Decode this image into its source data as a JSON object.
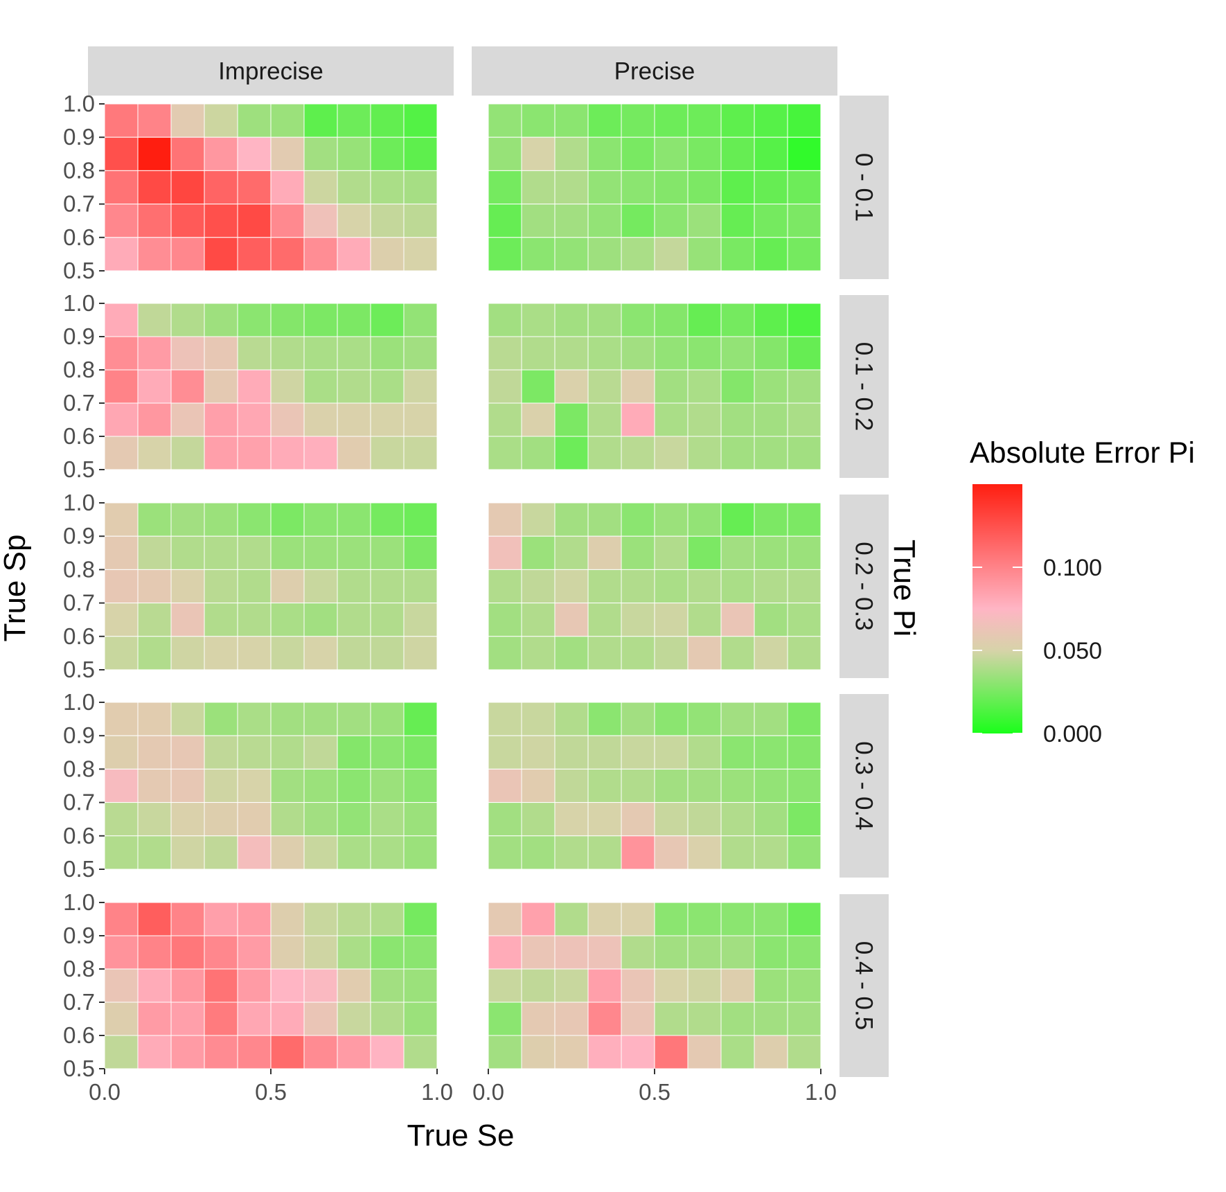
{
  "chart_data": {
    "type": "heatmap",
    "title": "",
    "xlabel": "True Se",
    "ylabel": "True Sp",
    "row_facet_label": "True Pi",
    "column_facets": [
      "Imprecise",
      "Precise"
    ],
    "row_facets": [
      "0 - 0.1",
      "0.1 - 0.2",
      "0.2 - 0.3",
      "0.3 - 0.4",
      "0.4 - 0.5"
    ],
    "xlim": [
      0,
      1
    ],
    "ylim": [
      0.5,
      1.0
    ],
    "x_ticks": [
      "0.0",
      "0.5",
      "1.0"
    ],
    "y_ticks": [
      "0.5",
      "0.6",
      "0.7",
      "0.8",
      "0.9",
      "1.0"
    ],
    "x_tick_values": [
      0,
      0.5,
      1.0
    ],
    "y_tick_values": [
      0.5,
      0.6,
      0.7,
      0.8,
      0.9,
      1.0
    ],
    "x_bins": [
      0.0,
      0.1,
      0.2,
      0.3,
      0.4,
      0.5,
      0.6,
      0.7,
      0.8,
      0.9,
      1.0
    ],
    "y_bins": [
      0.5,
      0.6,
      0.7,
      0.8,
      0.9,
      1.0
    ],
    "grid": false,
    "legend": {
      "title": "Absolute Error Pi",
      "position": "right",
      "breaks": [
        0.0,
        0.05,
        0.1
      ],
      "labels": [
        "0.000",
        "0.050",
        "0.100"
      ],
      "limits": [
        0,
        0.15
      ],
      "gradient": [
        {
          "value": 0.0,
          "color": "#1aff1a"
        },
        {
          "value": 0.05,
          "color": "#d7d3a9"
        },
        {
          "value": 0.075,
          "color": "#ffb5c4"
        },
        {
          "value": 0.15,
          "color": "#ff1e10"
        }
      ]
    },
    "value_note": "Rows listed top (Sp 0.9-1.0) to bottom (Sp 0.5-0.6); columns Se 0.0-0.1 to 0.9-1.0.",
    "panels": [
      {
        "column": "Imprecise",
        "row": "0 - 0.1",
        "values": [
          [
            0.105,
            0.1,
            0.057,
            0.047,
            0.035,
            0.034,
            0.018,
            0.022,
            0.019,
            0.015
          ],
          [
            0.125,
            0.15,
            0.108,
            0.09,
            0.075,
            0.057,
            0.036,
            0.033,
            0.022,
            0.018
          ],
          [
            0.108,
            0.128,
            0.13,
            0.115,
            0.112,
            0.08,
            0.047,
            0.04,
            0.038,
            0.037
          ],
          [
            0.098,
            0.11,
            0.12,
            0.125,
            0.128,
            0.097,
            0.065,
            0.05,
            0.045,
            0.043
          ],
          [
            0.08,
            0.095,
            0.098,
            0.128,
            0.118,
            0.112,
            0.095,
            0.08,
            0.053,
            0.05
          ]
        ]
      },
      {
        "column": "Precise",
        "row": "0 - 0.1",
        "values": [
          [
            0.032,
            0.03,
            0.03,
            0.022,
            0.024,
            0.022,
            0.022,
            0.018,
            0.016,
            0.012
          ],
          [
            0.033,
            0.05,
            0.04,
            0.03,
            0.025,
            0.03,
            0.025,
            0.02,
            0.016,
            0.006
          ],
          [
            0.024,
            0.04,
            0.04,
            0.032,
            0.03,
            0.028,
            0.026,
            0.018,
            0.02,
            0.022
          ],
          [
            0.02,
            0.036,
            0.036,
            0.032,
            0.024,
            0.03,
            0.034,
            0.02,
            0.024,
            0.026
          ],
          [
            0.022,
            0.03,
            0.032,
            0.035,
            0.038,
            0.045,
            0.033,
            0.025,
            0.02,
            0.024
          ]
        ]
      },
      {
        "column": "Imprecise",
        "row": "0.1 - 0.2",
        "values": [
          [
            0.08,
            0.044,
            0.04,
            0.035,
            0.03,
            0.028,
            0.026,
            0.026,
            0.022,
            0.032
          ],
          [
            0.095,
            0.088,
            0.064,
            0.06,
            0.042,
            0.04,
            0.038,
            0.038,
            0.034,
            0.036
          ],
          [
            0.1,
            0.08,
            0.095,
            0.058,
            0.08,
            0.048,
            0.038,
            0.04,
            0.038,
            0.048
          ],
          [
            0.082,
            0.09,
            0.062,
            0.086,
            0.082,
            0.062,
            0.052,
            0.052,
            0.05,
            0.05
          ],
          [
            0.058,
            0.05,
            0.045,
            0.086,
            0.085,
            0.08,
            0.078,
            0.056,
            0.046,
            0.046
          ]
        ]
      },
      {
        "column": "Precise",
        "row": "0.1 - 0.2",
        "values": [
          [
            0.036,
            0.038,
            0.036,
            0.036,
            0.03,
            0.028,
            0.02,
            0.024,
            0.018,
            0.014
          ],
          [
            0.042,
            0.04,
            0.04,
            0.038,
            0.036,
            0.032,
            0.03,
            0.032,
            0.028,
            0.02
          ],
          [
            0.044,
            0.026,
            0.052,
            0.042,
            0.055,
            0.036,
            0.038,
            0.028,
            0.034,
            0.036
          ],
          [
            0.04,
            0.052,
            0.026,
            0.04,
            0.08,
            0.038,
            0.04,
            0.036,
            0.036,
            0.038
          ],
          [
            0.038,
            0.036,
            0.022,
            0.04,
            0.042,
            0.046,
            0.04,
            0.036,
            0.036,
            0.036
          ]
        ]
      },
      {
        "column": "Imprecise",
        "row": "0.2 - 0.3",
        "values": [
          [
            0.056,
            0.034,
            0.036,
            0.034,
            0.03,
            0.026,
            0.03,
            0.03,
            0.024,
            0.022
          ],
          [
            0.058,
            0.044,
            0.04,
            0.04,
            0.04,
            0.034,
            0.034,
            0.034,
            0.034,
            0.026
          ],
          [
            0.06,
            0.058,
            0.052,
            0.042,
            0.04,
            0.054,
            0.046,
            0.04,
            0.04,
            0.04
          ],
          [
            0.05,
            0.042,
            0.062,
            0.04,
            0.04,
            0.038,
            0.036,
            0.04,
            0.04,
            0.046
          ],
          [
            0.046,
            0.04,
            0.048,
            0.05,
            0.05,
            0.046,
            0.05,
            0.044,
            0.044,
            0.048
          ]
        ]
      },
      {
        "column": "Precise",
        "row": "0.2 - 0.3",
        "values": [
          [
            0.058,
            0.046,
            0.036,
            0.036,
            0.03,
            0.034,
            0.032,
            0.02,
            0.026,
            0.026
          ],
          [
            0.066,
            0.034,
            0.04,
            0.054,
            0.034,
            0.04,
            0.026,
            0.036,
            0.034,
            0.034
          ],
          [
            0.04,
            0.044,
            0.048,
            0.04,
            0.04,
            0.038,
            0.04,
            0.038,
            0.04,
            0.04
          ],
          [
            0.036,
            0.04,
            0.06,
            0.04,
            0.046,
            0.048,
            0.04,
            0.062,
            0.036,
            0.038
          ],
          [
            0.036,
            0.04,
            0.036,
            0.04,
            0.04,
            0.044,
            0.058,
            0.04,
            0.048,
            0.04
          ]
        ]
      },
      {
        "column": "Imprecise",
        "row": "0.3 - 0.4",
        "values": [
          [
            0.056,
            0.056,
            0.046,
            0.034,
            0.038,
            0.036,
            0.036,
            0.036,
            0.034,
            0.02
          ],
          [
            0.054,
            0.058,
            0.06,
            0.044,
            0.042,
            0.04,
            0.044,
            0.028,
            0.03,
            0.026
          ],
          [
            0.07,
            0.058,
            0.06,
            0.048,
            0.05,
            0.036,
            0.034,
            0.03,
            0.034,
            0.03
          ],
          [
            0.042,
            0.046,
            0.052,
            0.054,
            0.056,
            0.04,
            0.036,
            0.032,
            0.038,
            0.034
          ],
          [
            0.04,
            0.04,
            0.048,
            0.044,
            0.068,
            0.054,
            0.046,
            0.038,
            0.038,
            0.034
          ]
        ]
      },
      {
        "column": "Precise",
        "row": "0.3 - 0.4",
        "values": [
          [
            0.046,
            0.046,
            0.04,
            0.03,
            0.036,
            0.03,
            0.032,
            0.036,
            0.036,
            0.026
          ],
          [
            0.046,
            0.048,
            0.044,
            0.044,
            0.046,
            0.046,
            0.04,
            0.03,
            0.03,
            0.028
          ],
          [
            0.062,
            0.056,
            0.044,
            0.04,
            0.04,
            0.036,
            0.036,
            0.034,
            0.032,
            0.03
          ],
          [
            0.036,
            0.04,
            0.05,
            0.05,
            0.058,
            0.046,
            0.044,
            0.04,
            0.036,
            0.026
          ],
          [
            0.036,
            0.036,
            0.04,
            0.04,
            0.092,
            0.06,
            0.052,
            0.04,
            0.04,
            0.032
          ]
        ]
      },
      {
        "column": "Imprecise",
        "row": "0.4 - 0.5",
        "values": [
          [
            0.1,
            0.118,
            0.1,
            0.086,
            0.088,
            0.054,
            0.046,
            0.042,
            0.04,
            0.024
          ],
          [
            0.092,
            0.1,
            0.106,
            0.098,
            0.088,
            0.054,
            0.048,
            0.038,
            0.03,
            0.03
          ],
          [
            0.062,
            0.08,
            0.09,
            0.108,
            0.088,
            0.075,
            0.072,
            0.056,
            0.036,
            0.034
          ],
          [
            0.054,
            0.088,
            0.086,
            0.104,
            0.082,
            0.08,
            0.062,
            0.046,
            0.04,
            0.034
          ],
          [
            0.044,
            0.08,
            0.088,
            0.096,
            0.098,
            0.112,
            0.096,
            0.088,
            0.076,
            0.04
          ]
        ]
      },
      {
        "column": "Precise",
        "row": "0.4 - 0.5",
        "values": [
          [
            0.058,
            0.085,
            0.04,
            0.052,
            0.052,
            0.03,
            0.03,
            0.03,
            0.03,
            0.022
          ],
          [
            0.08,
            0.062,
            0.064,
            0.064,
            0.04,
            0.036,
            0.036,
            0.036,
            0.03,
            0.03
          ],
          [
            0.046,
            0.044,
            0.046,
            0.086,
            0.062,
            0.05,
            0.048,
            0.054,
            0.034,
            0.034
          ],
          [
            0.03,
            0.058,
            0.06,
            0.098,
            0.062,
            0.04,
            0.04,
            0.036,
            0.036,
            0.036
          ],
          [
            0.036,
            0.054,
            0.056,
            0.078,
            0.076,
            0.106,
            0.058,
            0.038,
            0.054,
            0.04
          ]
        ]
      }
    ]
  }
}
